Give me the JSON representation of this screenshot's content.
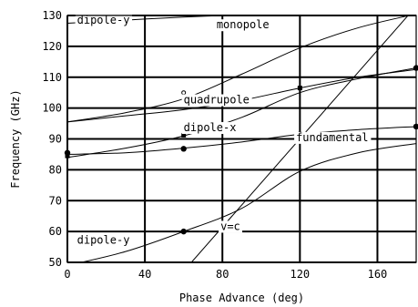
{
  "chart_data": {
    "type": "line",
    "title": "",
    "xlabel": "Phase Advance (deg)",
    "ylabel": "Frequency (GHz)",
    "xlim": [
      0,
      180
    ],
    "ylim": [
      50,
      130
    ],
    "xticks": [
      0,
      40,
      80,
      120,
      160
    ],
    "yticks": [
      50,
      60,
      70,
      80,
      90,
      100,
      110,
      120,
      130
    ],
    "grid": true,
    "series": [
      {
        "name": "dipole-y",
        "color": "#000000",
        "marker": "none",
        "points": [
          [
            0,
            127.5
          ],
          [
            30,
            128.5
          ],
          [
            60,
            129.5
          ],
          [
            90,
            130.2
          ]
        ]
      },
      {
        "name": "monopole",
        "color": "#000000",
        "marker": "none",
        "points": [
          [
            0,
            95.5
          ],
          [
            30,
            98.5
          ],
          [
            60,
            103
          ],
          [
            90,
            111
          ],
          [
            120,
            119.5
          ],
          [
            150,
            126
          ],
          [
            180,
            130.5
          ]
        ]
      },
      {
        "name": "quadrupole",
        "color": "#000000",
        "marker": "circle",
        "points": [
          [
            0,
            95.5
          ],
          [
            30,
            97.5
          ],
          [
            60,
            99.5
          ],
          [
            90,
            102.5
          ],
          [
            120,
            106.5
          ],
          [
            150,
            110
          ],
          [
            180,
            112.5
          ]
        ]
      },
      {
        "name": "dipole-x",
        "color": "#000000",
        "marker": "square",
        "points": [
          [
            0,
            84
          ],
          [
            30,
            87
          ],
          [
            60,
            91
          ],
          [
            90,
            97
          ],
          [
            120,
            105
          ],
          [
            150,
            109.5
          ],
          [
            180,
            113
          ]
        ]
      },
      {
        "name": "fundamental",
        "color": "#000000",
        "marker": "dot",
        "points": [
          [
            0,
            85
          ],
          [
            30,
            85.5
          ],
          [
            60,
            87
          ],
          [
            90,
            89
          ],
          [
            120,
            91.5
          ],
          [
            150,
            93
          ],
          [
            180,
            94
          ]
        ]
      },
      {
        "name": "dipole-y",
        "color": "#000000",
        "marker": "none",
        "points": [
          [
            0,
            49
          ],
          [
            30,
            53.5
          ],
          [
            60,
            60
          ],
          [
            90,
            67.5
          ],
          [
            120,
            79.5
          ],
          [
            150,
            85.5
          ],
          [
            180,
            88.5
          ]
        ]
      },
      {
        "name": "v=c",
        "color": "#000000",
        "marker": "none",
        "points": [
          [
            64,
            50
          ],
          [
            180,
            133
          ]
        ]
      }
    ],
    "annotations": [
      {
        "text": "dipole-y",
        "x": 5,
        "y": 127.3
      },
      {
        "text": "monopole",
        "x": 77,
        "y": 125.8
      },
      {
        "text": "quadrupole",
        "x": 60,
        "y": 101.5
      },
      {
        "text": "dipole-x",
        "x": 60,
        "y": 92.5
      },
      {
        "text": "fundamental",
        "x": 118,
        "y": 89.3
      },
      {
        "text": "v=c",
        "x": 79,
        "y": 60.5
      },
      {
        "text": "dipole-y",
        "x": 5,
        "y": 56
      }
    ],
    "markers": [
      {
        "shape": "circle",
        "x": 60,
        "y": 105
      },
      {
        "shape": "square",
        "x": 60,
        "y": 91.2
      },
      {
        "shape": "square",
        "x": 120,
        "y": 106.5
      },
      {
        "shape": "square",
        "x": 0,
        "y": 84.5
      },
      {
        "shape": "dot",
        "x": 0,
        "y": 85.5
      },
      {
        "shape": "dot",
        "x": 60,
        "y": 86.8
      },
      {
        "shape": "dot",
        "x": 120,
        "y": 91.5
      },
      {
        "shape": "dot",
        "x": 180,
        "y": 94
      },
      {
        "shape": "dot",
        "x": 180,
        "y": 113
      },
      {
        "shape": "dot",
        "x": 60,
        "y": 60
      }
    ]
  }
}
